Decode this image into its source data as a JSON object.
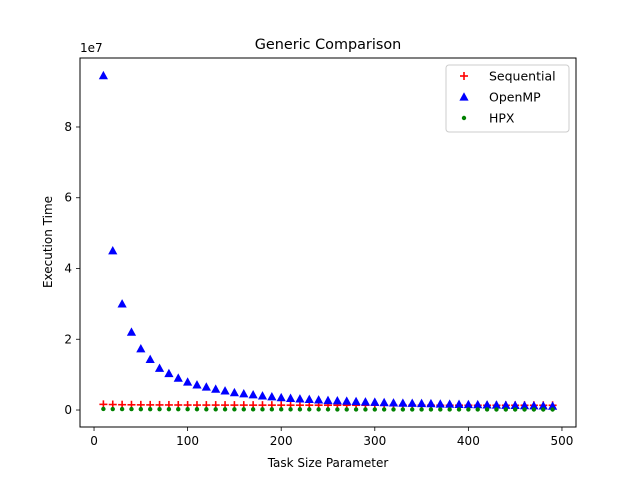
{
  "chart_data": {
    "type": "scatter",
    "title": "Generic Comparison",
    "xlabel": "Task Size Parameter",
    "ylabel": "Execution Time",
    "y_offset_label": "1e7",
    "y_scale": 10000000,
    "xlim": [
      -15,
      515
    ],
    "ylim": [
      -4800000,
      99500000
    ],
    "x_ticks": [
      0,
      100,
      200,
      300,
      400,
      500
    ],
    "y_ticks": [
      0,
      20000000,
      40000000,
      60000000,
      80000000
    ],
    "grid": false,
    "legend_position": "top-right",
    "x": [
      10,
      20,
      30,
      40,
      50,
      60,
      70,
      80,
      90,
      100,
      110,
      120,
      130,
      140,
      150,
      160,
      170,
      180,
      190,
      200,
      210,
      220,
      230,
      240,
      250,
      260,
      270,
      280,
      290,
      300,
      310,
      320,
      330,
      340,
      350,
      360,
      370,
      380,
      390,
      400,
      410,
      420,
      430,
      440,
      450,
      460,
      470,
      480,
      490
    ],
    "series": [
      {
        "name": "Sequential",
        "marker": "plus",
        "color": "#ff0000",
        "values": [
          1600000,
          1550000,
          1500000,
          1480000,
          1460000,
          1450000,
          1440000,
          1430000,
          1420000,
          1410000,
          1400000,
          1400000,
          1400000,
          1390000,
          1390000,
          1390000,
          1380000,
          1380000,
          1380000,
          1380000,
          1370000,
          1370000,
          1370000,
          1370000,
          1370000,
          1360000,
          1360000,
          1360000,
          1360000,
          1360000,
          1360000,
          1350000,
          1350000,
          1350000,
          1350000,
          1350000,
          1350000,
          1350000,
          1350000,
          1350000,
          1340000,
          1340000,
          1340000,
          1340000,
          1340000,
          1340000,
          1340000,
          1340000,
          1340000
        ]
      },
      {
        "name": "OpenMP",
        "marker": "triangle",
        "color": "#0000ff",
        "values": [
          94500000,
          45000000,
          30000000,
          22000000,
          17300000,
          14300000,
          11800000,
          10300000,
          9000000,
          7900000,
          7100000,
          6500000,
          5900000,
          5400000,
          4900000,
          4600000,
          4300000,
          4000000,
          3750000,
          3500000,
          3300000,
          3150000,
          3000000,
          2850000,
          2700000,
          2600000,
          2500000,
          2400000,
          2300000,
          2200000,
          2100000,
          2000000,
          1950000,
          1900000,
          1850000,
          1800000,
          1700000,
          1650000,
          1600000,
          1550000,
          1500000,
          1450000,
          1400000,
          1350000,
          1300000,
          1250000,
          1200000,
          1150000,
          1100000
        ]
      },
      {
        "name": "HPX",
        "marker": "circle",
        "color": "#008000",
        "values": [
          300000,
          280000,
          270000,
          260000,
          250000,
          245000,
          240000,
          235000,
          230000,
          225000,
          220000,
          215000,
          210000,
          205000,
          200000,
          200000,
          195000,
          195000,
          190000,
          190000,
          185000,
          185000,
          180000,
          180000,
          180000,
          175000,
          175000,
          175000,
          170000,
          170000,
          170000,
          165000,
          165000,
          165000,
          160000,
          160000,
          160000,
          160000,
          155000,
          155000,
          155000,
          155000,
          150000,
          150000,
          150000,
          150000,
          150000,
          145000,
          145000
        ]
      }
    ]
  }
}
